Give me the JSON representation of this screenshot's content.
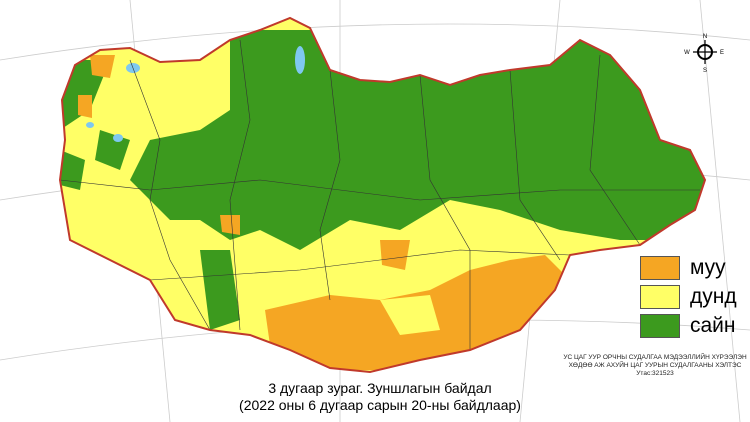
{
  "legend": [
    {
      "label": "муу",
      "color": "#f5a623"
    },
    {
      "label": "дунд",
      "color": "#ffff66"
    },
    {
      "label": "сайн",
      "color": "#3c9a1e"
    }
  ],
  "institution": {
    "line1": "УС ЦАГ УУР ОРЧНЫ СУДАЛГАА МЭДЭЭЛЛИЙН ХҮРЭЭЛЭН",
    "line2": "ХӨДӨӨ АЖ АХУЙН ЦАГ УУРЫН СУДАЛГААНЫ ХЭЛТЭС",
    "line3": "Утас:321523"
  },
  "caption": {
    "line1": "3 дугаар зураг. Зуншлагын байдал",
    "line2": "(2022 оны 6 дугаар сарын 20-ны байдлаар)"
  },
  "compass": {
    "n": "N",
    "s": "S",
    "e": "E",
    "w": "W"
  },
  "colors": {
    "border": "#c0392b",
    "water": "#7ec8f0"
  }
}
